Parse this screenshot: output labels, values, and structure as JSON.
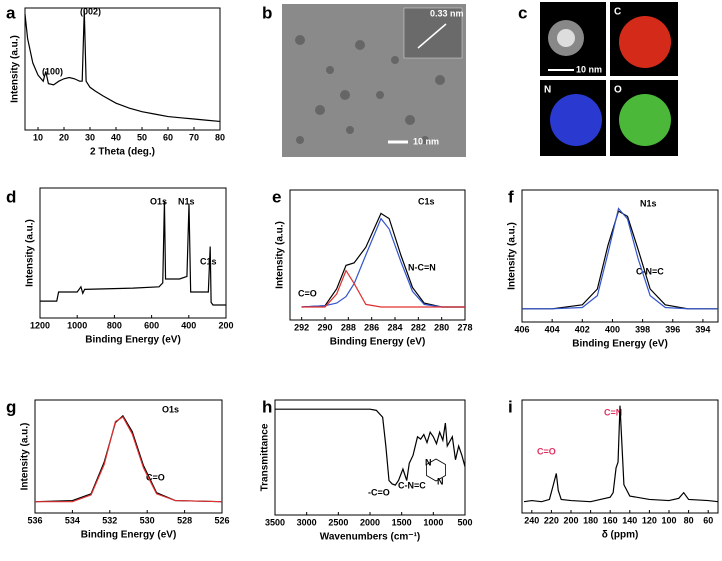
{
  "chart_data": [
    {
      "type": "line",
      "panel": "a",
      "xlabel": "2 Theta (deg.)",
      "ylabel": "Intensity (a.u.)",
      "annotations": [
        "(100)",
        "(002)"
      ],
      "xlim": [
        5,
        80
      ],
      "xticks": [
        10,
        20,
        30,
        40,
        50,
        60,
        70,
        80
      ],
      "ylim": [
        0,
        100
      ],
      "x": [
        5,
        6,
        8,
        10,
        12,
        13,
        14,
        16,
        18,
        20,
        22,
        24,
        26,
        27,
        27.8,
        28.5,
        30,
        32,
        35,
        40,
        45,
        50,
        55,
        60,
        65,
        70,
        75,
        80
      ],
      "series": [
        {
          "color": "#000000",
          "values": [
            95,
            75,
            55,
            45,
            40,
            48,
            38,
            37,
            40,
            42,
            43,
            42,
            40,
            40,
            98,
            40,
            35,
            32,
            28,
            22,
            18,
            15,
            13,
            11,
            10,
            9,
            8,
            7
          ]
        }
      ]
    },
    {
      "type": "line",
      "panel": "d",
      "xlabel": "Binding Energy (eV)",
      "ylabel": "Intensity (a.u.)",
      "annotations": [
        "O1s",
        "N1s",
        "C1s"
      ],
      "xlim": [
        1200,
        200
      ],
      "xticks": [
        1200,
        1000,
        800,
        600,
        400,
        200
      ],
      "ylim": [
        0,
        100
      ],
      "x": [
        1200,
        1110,
        1100,
        1000,
        980,
        970,
        960,
        700,
        560,
        540,
        531,
        525,
        450,
        410,
        399,
        390,
        350,
        295,
        285,
        280,
        270,
        200
      ],
      "series": [
        {
          "color": "#000000",
          "values": [
            13,
            13,
            20,
            20,
            24,
            19,
            22,
            23,
            24,
            27,
            90,
            30,
            30,
            32,
            88,
            20,
            20,
            20,
            55,
            12,
            10,
            10
          ]
        }
      ]
    },
    {
      "type": "line",
      "panel": "e",
      "xlabel": "Binding Energy (eV)",
      "ylabel": "Intensity (a.u.)",
      "annotations": [
        "C1s",
        "C=O",
        "N-C=N"
      ],
      "xlim": [
        293,
        278
      ],
      "xticks": [
        292,
        290,
        288,
        286,
        284,
        282,
        280,
        278
      ],
      "ylim": [
        0,
        100
      ],
      "x": [
        292,
        290,
        289,
        288.2,
        287.5,
        286.5,
        285.2,
        284.5,
        283.5,
        282.5,
        281.5,
        280,
        278
      ],
      "series": [
        {
          "color": "#000000",
          "values": [
            10,
            11,
            24,
            42,
            44,
            56,
            82,
            78,
            50,
            25,
            13,
            10,
            10
          ]
        },
        {
          "color": "#3355cc",
          "values": [
            10,
            11,
            13,
            18,
            28,
            50,
            78,
            70,
            45,
            22,
            12,
            10,
            10
          ]
        },
        {
          "color": "#e03030",
          "values": [
            10,
            10,
            20,
            38,
            28,
            12,
            10,
            10,
            10,
            10,
            10,
            10,
            10
          ]
        }
      ]
    },
    {
      "type": "line",
      "panel": "f",
      "xlabel": "Binding Energy (eV)",
      "ylabel": "Intensity (a.u.)",
      "annotations": [
        "N1s",
        "C-N=C"
      ],
      "xlim": [
        406,
        393
      ],
      "xticks": [
        406,
        404,
        402,
        400,
        398,
        396,
        394
      ],
      "ylim": [
        0,
        100
      ],
      "x": [
        406,
        404,
        402,
        401,
        400.3,
        399.6,
        399,
        398.3,
        397.5,
        396.5,
        395,
        393
      ],
      "series": [
        {
          "color": "#000000",
          "values": [
            10,
            10,
            13,
            25,
            58,
            84,
            80,
            55,
            25,
            13,
            10,
            10
          ]
        },
        {
          "color": "#3355cc",
          "values": [
            10,
            10,
            11,
            20,
            52,
            86,
            78,
            48,
            20,
            11,
            10,
            10
          ]
        }
      ]
    },
    {
      "type": "line",
      "panel": "g",
      "xlabel": "Binding Energy (eV)",
      "ylabel": "Intensity (a.u.)",
      "annotations": [
        "O1s",
        "C=O"
      ],
      "xlim": [
        536,
        526
      ],
      "xticks": [
        536,
        534,
        532,
        530,
        528,
        526
      ],
      "ylim": [
        0,
        100
      ],
      "x": [
        536,
        534,
        533,
        532.3,
        531.7,
        531.3,
        530.8,
        530.2,
        529.5,
        528.5,
        526
      ],
      "series": [
        {
          "color": "#000000",
          "values": [
            10,
            11,
            17,
            45,
            80,
            86,
            72,
            42,
            18,
            11,
            10
          ]
        },
        {
          "color": "#e03030",
          "values": [
            10,
            10,
            16,
            43,
            81,
            85,
            70,
            40,
            17,
            11,
            10
          ]
        }
      ]
    },
    {
      "type": "line",
      "panel": "h",
      "xlabel": "Wavenumbers (cm⁻¹)",
      "ylabel": "Transmittance",
      "annotations": [
        "-C=O",
        "C-N=C",
        "N",
        "N"
      ],
      "xlim": [
        3500,
        500
      ],
      "xticks": [
        3500,
        3000,
        2500,
        2000,
        1500,
        1000,
        500
      ],
      "ylim": [
        0,
        100
      ],
      "x": [
        3500,
        3000,
        2500,
        2000,
        1900,
        1800,
        1750,
        1700,
        1650,
        1600,
        1550,
        1480,
        1420,
        1380,
        1320,
        1250,
        1200,
        1150,
        1100,
        1050,
        1000,
        950,
        900,
        850,
        810,
        780,
        700,
        650,
        600,
        550,
        500
      ],
      "series": [
        {
          "color": "#000000",
          "values": [
            92,
            92,
            92,
            92,
            91,
            85,
            60,
            30,
            27,
            26,
            30,
            40,
            30,
            45,
            52,
            68,
            66,
            70,
            63,
            72,
            68,
            62,
            72,
            65,
            80,
            60,
            68,
            48,
            60,
            52,
            42
          ]
        }
      ]
    },
    {
      "type": "line",
      "panel": "i",
      "xlabel": "δ (ppm)",
      "annotations": [
        "C=O",
        "C=N"
      ],
      "xlim": [
        250,
        50
      ],
      "xticks": [
        240,
        220,
        200,
        180,
        160,
        140,
        120,
        100,
        80,
        60
      ],
      "ylim": [
        0,
        100
      ],
      "x": [
        248,
        240,
        230,
        222,
        218,
        215,
        213,
        210,
        200,
        180,
        170,
        160,
        157,
        154,
        152,
        150,
        148,
        146,
        140,
        120,
        100,
        90,
        85,
        80,
        60,
        50
      ],
      "series": [
        {
          "color": "#000000",
          "values": [
            10,
            11,
            10,
            12,
            25,
            35,
            20,
            12,
            11,
            10,
            12,
            14,
            18,
            40,
            45,
            95,
            60,
            25,
            15,
            12,
            11,
            13,
            18,
            12,
            11,
            10
          ]
        }
      ]
    }
  ],
  "images": [
    {
      "panel": "b",
      "labels": [
        "0.33 nm",
        "10 nm"
      ]
    },
    {
      "panel": "c",
      "labels": [
        "C",
        "N",
        "O",
        "10 nm"
      ]
    }
  ]
}
